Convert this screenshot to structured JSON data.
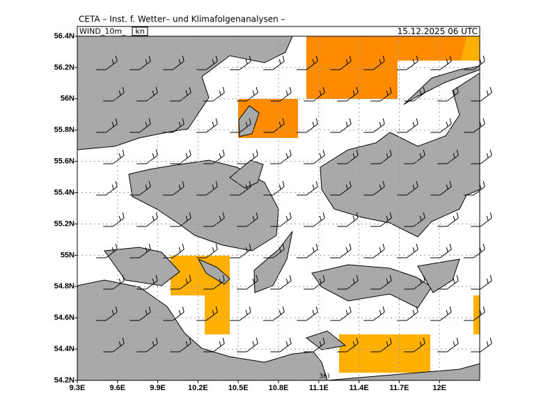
{
  "header": {
    "title": "CETA – Inst. f. Wetter– und Klimafolgenanalysen –",
    "variable": "WIND_10m_",
    "unit": "kn",
    "valid_time": "15.12.2025 06 UTC"
  },
  "map": {
    "xlim": [
      9.3,
      12.3
    ],
    "ylim": [
      54.2,
      56.4
    ],
    "grid": true,
    "annotation": "36)",
    "xticks": [
      {
        "value": 9.3,
        "label": "9.3E"
      },
      {
        "value": 9.6,
        "label": "9.6E"
      },
      {
        "value": 9.9,
        "label": "9.9E"
      },
      {
        "value": 10.2,
        "label": "10.2E"
      },
      {
        "value": 10.5,
        "label": "10.5E"
      },
      {
        "value": 10.8,
        "label": "10.8E"
      },
      {
        "value": 11.1,
        "label": "11.1E"
      },
      {
        "value": 11.4,
        "label": "11.4E"
      },
      {
        "value": 11.7,
        "label": "11.7E"
      },
      {
        "value": 12,
        "label": "12E"
      }
    ],
    "yticks": [
      {
        "value": 54.2,
        "label": "54.2N"
      },
      {
        "value": 54.4,
        "label": "54.4N"
      },
      {
        "value": 54.6,
        "label": "54.6N"
      },
      {
        "value": 54.8,
        "label": "54.8N"
      },
      {
        "value": 55,
        "label": "55N"
      },
      {
        "value": 55.2,
        "label": "55.2N"
      },
      {
        "value": 55.4,
        "label": "55.4N"
      },
      {
        "value": 55.6,
        "label": "55.6N"
      },
      {
        "value": 55.8,
        "label": "55.8N"
      },
      {
        "value": 56,
        "label": "56N"
      },
      {
        "value": 56.2,
        "label": "56.2N"
      },
      {
        "value": 56.4,
        "label": "56.4N"
      }
    ]
  }
}
